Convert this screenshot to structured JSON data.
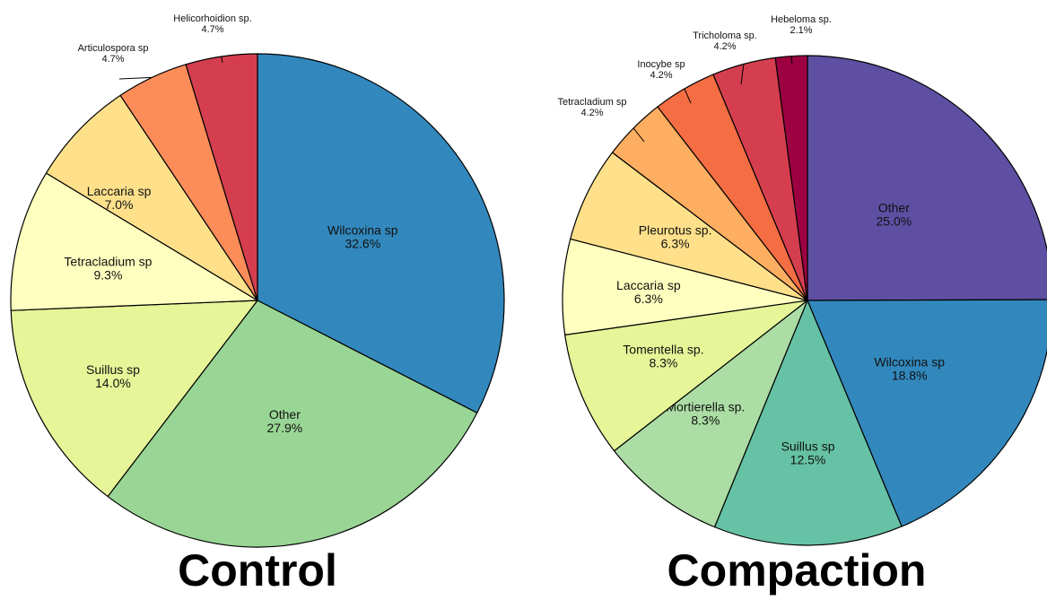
{
  "chart_data": [
    {
      "type": "pie",
      "title": "Control",
      "slices": [
        {
          "label": "Wilcoxina sp",
          "value": 32.6,
          "display": "32.6%",
          "color": "#3288bd"
        },
        {
          "label": "Other",
          "value": 27.9,
          "display": "27.9%",
          "color": "#99d594"
        },
        {
          "label": "Suillus sp",
          "value": 14.0,
          "display": "14.0%",
          "color": "#e6f598"
        },
        {
          "label": "Tetracladium sp",
          "value": 9.3,
          "display": "9.3%",
          "color": "#ffffbf"
        },
        {
          "label": "Laccaria sp",
          "value": 7.0,
          "display": "7.0%",
          "color": "#fee08b"
        },
        {
          "label": "Articulospora sp",
          "value": 4.7,
          "display": "4.7%",
          "color": "#fc8d59"
        },
        {
          "label": "Helicorhoidion sp.",
          "value": 4.7,
          "display": "4.7%",
          "color": "#d53e4f"
        }
      ]
    },
    {
      "type": "pie",
      "title": "Compaction",
      "slices": [
        {
          "label": "Other",
          "value": 25.0,
          "display": "25.0%",
          "color": "#5e4fa2"
        },
        {
          "label": "Wilcoxina sp",
          "value": 18.8,
          "display": "18.8%",
          "color": "#3288bd"
        },
        {
          "label": "Suillus sp",
          "value": 12.5,
          "display": "12.5%",
          "color": "#66c2a5"
        },
        {
          "label": "Mortierella sp.",
          "value": 8.3,
          "display": "8.3%",
          "color": "#abdda4"
        },
        {
          "label": "Tomentella sp.",
          "value": 8.3,
          "display": "8.3%",
          "color": "#e6f598"
        },
        {
          "label": "Laccaria sp",
          "value": 6.3,
          "display": "6.3%",
          "color": "#ffffbf"
        },
        {
          "label": "Pleurotus sp.",
          "value": 6.3,
          "display": "6.3%",
          "color": "#fee08b"
        },
        {
          "label": "Tetracladium sp",
          "value": 4.2,
          "display": "4.2%",
          "color": "#fdae61"
        },
        {
          "label": "Inocybe sp",
          "value": 4.2,
          "display": "4.2%",
          "color": "#f46d43"
        },
        {
          "label": "Tricholoma sp.",
          "value": 4.2,
          "display": "4.2%",
          "color": "#d53e4f"
        },
        {
          "label": "Hebeloma sp.",
          "value": 2.1,
          "display": "2.1%",
          "color": "#9e0142"
        }
      ]
    }
  ]
}
